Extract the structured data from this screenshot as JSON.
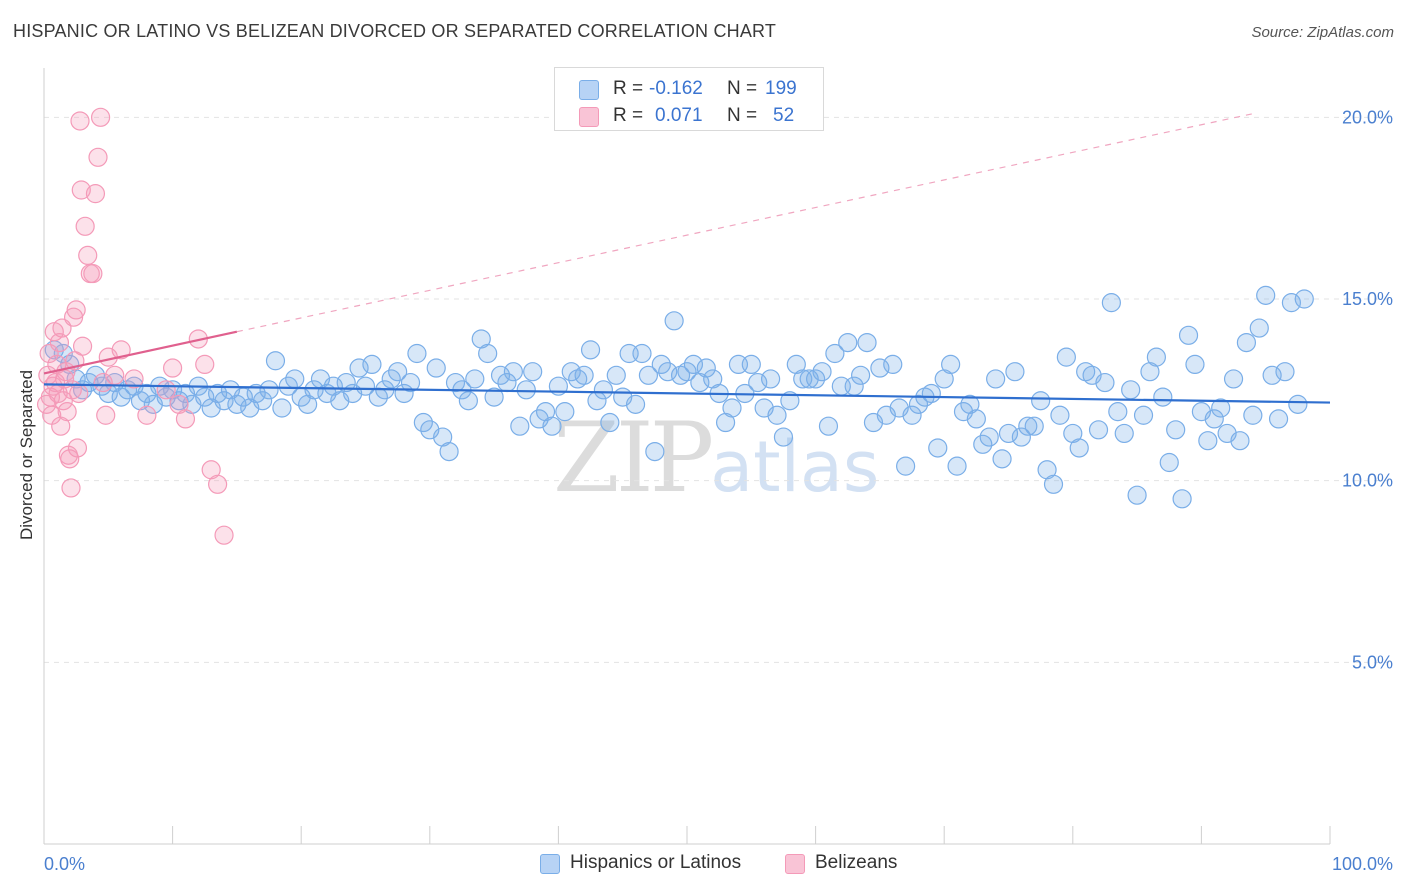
{
  "chart_data": {
    "type": "scatter",
    "title": "HISPANIC OR LATINO VS BELIZEAN DIVORCED OR SEPARATED CORRELATION CHART",
    "source": "Source: ZipAtlas.com",
    "ylabel": "Divorced or Separated",
    "xlim": [
      0,
      100
    ],
    "ylim": [
      0,
      21
    ],
    "x_tick_labels": [
      "0.0%",
      "100.0%"
    ],
    "y_ticks": [
      {
        "value": 5,
        "label": "5.0%"
      },
      {
        "value": 10,
        "label": "10.0%"
      },
      {
        "value": 15,
        "label": "15.0%"
      },
      {
        "value": 20,
        "label": "20.0%"
      }
    ],
    "legend": {
      "rows": [
        {
          "r_label": "R =",
          "r_value": "-0.162",
          "n_label": "N =",
          "n_value": "199"
        },
        {
          "r_label": "R =",
          "r_value": "0.071",
          "n_label": "N =",
          "n_value": "52"
        }
      ]
    },
    "watermark": {
      "zip": "ZIP",
      "atlas": "atlas"
    },
    "series": [
      {
        "name": "Hispanics or Latinos",
        "color": "#7aaee8",
        "line_color": "#2f6fcf",
        "trend": {
          "x": [
            0,
            100
          ],
          "y": [
            12.65,
            12.15
          ]
        },
        "points": [
          [
            0.8,
            13.6
          ],
          [
            1.5,
            13.5
          ],
          [
            2.0,
            13.2
          ],
          [
            2.5,
            12.8
          ],
          [
            3.0,
            12.5
          ],
          [
            3.5,
            12.7
          ],
          [
            4.0,
            12.9
          ],
          [
            4.5,
            12.6
          ],
          [
            5.0,
            12.4
          ],
          [
            5.5,
            12.7
          ],
          [
            6.0,
            12.3
          ],
          [
            6.5,
            12.5
          ],
          [
            7.0,
            12.6
          ],
          [
            7.5,
            12.2
          ],
          [
            8.0,
            12.4
          ],
          [
            8.5,
            12.1
          ],
          [
            9.0,
            12.6
          ],
          [
            9.5,
            12.3
          ],
          [
            10.0,
            12.5
          ],
          [
            10.5,
            12.2
          ],
          [
            11.0,
            12.4
          ],
          [
            11.5,
            12.1
          ],
          [
            12.0,
            12.6
          ],
          [
            12.5,
            12.3
          ],
          [
            13.0,
            12.0
          ],
          [
            13.5,
            12.4
          ],
          [
            14.0,
            12.2
          ],
          [
            14.5,
            12.5
          ],
          [
            15.0,
            12.1
          ],
          [
            15.5,
            12.3
          ],
          [
            16.0,
            12.0
          ],
          [
            16.5,
            12.4
          ],
          [
            17.0,
            12.2
          ],
          [
            17.5,
            12.5
          ],
          [
            18.0,
            13.3
          ],
          [
            18.5,
            12.0
          ],
          [
            19.0,
            12.6
          ],
          [
            19.5,
            12.8
          ],
          [
            20.0,
            12.3
          ],
          [
            20.5,
            12.1
          ],
          [
            21.0,
            12.5
          ],
          [
            21.5,
            12.8
          ],
          [
            22.0,
            12.4
          ],
          [
            22.5,
            12.6
          ],
          [
            23.0,
            12.2
          ],
          [
            23.5,
            12.7
          ],
          [
            24.0,
            12.4
          ],
          [
            24.5,
            13.1
          ],
          [
            25.0,
            12.6
          ],
          [
            25.5,
            13.2
          ],
          [
            26.0,
            12.3
          ],
          [
            26.5,
            12.5
          ],
          [
            27.0,
            12.8
          ],
          [
            27.5,
            13.0
          ],
          [
            28.0,
            12.4
          ],
          [
            28.5,
            12.7
          ],
          [
            29.0,
            13.5
          ],
          [
            29.5,
            11.6
          ],
          [
            30.0,
            11.4
          ],
          [
            30.5,
            13.1
          ],
          [
            31.0,
            11.2
          ],
          [
            31.5,
            10.8
          ],
          [
            32.0,
            12.7
          ],
          [
            32.5,
            12.5
          ],
          [
            33.0,
            12.2
          ],
          [
            33.5,
            12.8
          ],
          [
            34.0,
            13.9
          ],
          [
            34.5,
            13.5
          ],
          [
            35.0,
            12.3
          ],
          [
            35.5,
            12.9
          ],
          [
            36.0,
            12.7
          ],
          [
            36.5,
            13.0
          ],
          [
            37.0,
            11.5
          ],
          [
            37.5,
            12.5
          ],
          [
            38.0,
            13.0
          ],
          [
            38.5,
            11.7
          ],
          [
            39.0,
            11.9
          ],
          [
            39.5,
            11.5
          ],
          [
            40.0,
            12.6
          ],
          [
            40.5,
            11.9
          ],
          [
            41.0,
            13.0
          ],
          [
            41.5,
            12.8
          ],
          [
            42.0,
            12.9
          ],
          [
            42.5,
            13.6
          ],
          [
            43.0,
            12.2
          ],
          [
            43.5,
            12.5
          ],
          [
            44.0,
            11.6
          ],
          [
            44.5,
            12.9
          ],
          [
            45.0,
            12.3
          ],
          [
            45.5,
            13.5
          ],
          [
            46.0,
            12.1
          ],
          [
            46.5,
            13.5
          ],
          [
            47.0,
            12.9
          ],
          [
            47.5,
            10.8
          ],
          [
            48.0,
            13.2
          ],
          [
            48.5,
            13.0
          ],
          [
            49.0,
            14.4
          ],
          [
            49.5,
            12.9
          ],
          [
            50.0,
            13.0
          ],
          [
            50.5,
            13.2
          ],
          [
            51.0,
            12.7
          ],
          [
            51.5,
            13.1
          ],
          [
            52.0,
            12.8
          ],
          [
            52.5,
            12.4
          ],
          [
            53.0,
            11.6
          ],
          [
            53.5,
            12.0
          ],
          [
            54.0,
            13.2
          ],
          [
            54.5,
            12.4
          ],
          [
            55.0,
            13.2
          ],
          [
            55.5,
            12.7
          ],
          [
            56.0,
            12.0
          ],
          [
            56.5,
            12.8
          ],
          [
            57.0,
            11.8
          ],
          [
            57.5,
            11.2
          ],
          [
            58.0,
            12.2
          ],
          [
            58.5,
            13.2
          ],
          [
            59.0,
            12.8
          ],
          [
            59.5,
            12.8
          ],
          [
            60.0,
            12.8
          ],
          [
            60.5,
            13.0
          ],
          [
            61.0,
            11.5
          ],
          [
            61.5,
            13.5
          ],
          [
            62.0,
            12.6
          ],
          [
            62.5,
            13.8
          ],
          [
            63.0,
            12.6
          ],
          [
            63.5,
            12.9
          ],
          [
            64.0,
            13.8
          ],
          [
            64.5,
            11.6
          ],
          [
            65.0,
            13.1
          ],
          [
            65.5,
            11.8
          ],
          [
            66.0,
            13.2
          ],
          [
            66.5,
            12.0
          ],
          [
            67.0,
            10.4
          ],
          [
            67.5,
            11.8
          ],
          [
            68.0,
            12.1
          ],
          [
            68.5,
            12.3
          ],
          [
            69.0,
            12.4
          ],
          [
            69.5,
            10.9
          ],
          [
            70.0,
            12.8
          ],
          [
            70.5,
            13.2
          ],
          [
            71.0,
            10.4
          ],
          [
            71.5,
            11.9
          ],
          [
            72.0,
            12.1
          ],
          [
            72.5,
            11.7
          ],
          [
            73.0,
            11.0
          ],
          [
            73.5,
            11.2
          ],
          [
            74.0,
            12.8
          ],
          [
            74.5,
            10.6
          ],
          [
            75.0,
            11.3
          ],
          [
            75.5,
            13.0
          ],
          [
            76.0,
            11.2
          ],
          [
            76.5,
            11.5
          ],
          [
            77.0,
            11.5
          ],
          [
            77.5,
            12.2
          ],
          [
            78.0,
            10.3
          ],
          [
            78.5,
            9.9
          ],
          [
            79.0,
            11.8
          ],
          [
            79.5,
            13.4
          ],
          [
            80.0,
            11.3
          ],
          [
            80.5,
            10.9
          ],
          [
            81.0,
            13.0
          ],
          [
            81.5,
            12.9
          ],
          [
            82.0,
            11.4
          ],
          [
            82.5,
            12.7
          ],
          [
            83.0,
            14.9
          ],
          [
            83.5,
            11.9
          ],
          [
            84.0,
            11.3
          ],
          [
            84.5,
            12.5
          ],
          [
            85.0,
            9.6
          ],
          [
            85.5,
            11.8
          ],
          [
            86.0,
            13.0
          ],
          [
            86.5,
            13.4
          ],
          [
            87.0,
            12.3
          ],
          [
            87.5,
            10.5
          ],
          [
            88.0,
            11.4
          ],
          [
            88.5,
            9.5
          ],
          [
            89.0,
            14.0
          ],
          [
            89.5,
            13.2
          ],
          [
            90.0,
            11.9
          ],
          [
            90.5,
            11.1
          ],
          [
            91.0,
            11.7
          ],
          [
            91.5,
            12.0
          ],
          [
            92.0,
            11.3
          ],
          [
            92.5,
            12.8
          ],
          [
            93.0,
            11.1
          ],
          [
            93.5,
            13.8
          ],
          [
            94.0,
            11.8
          ],
          [
            94.5,
            14.2
          ],
          [
            95.0,
            15.1
          ],
          [
            95.5,
            12.9
          ],
          [
            96.0,
            11.7
          ],
          [
            96.5,
            13.0
          ],
          [
            97.0,
            14.9
          ],
          [
            97.5,
            12.1
          ],
          [
            98.0,
            15.0
          ]
        ]
      },
      {
        "name": "Belizeans",
        "color": "#f49ab8",
        "line_color": "#e0608e",
        "trend": {
          "x": [
            0,
            15
          ],
          "y": [
            12.95,
            14.1
          ]
        },
        "trend_ext": {
          "x": [
            15,
            94
          ],
          "y": [
            14.1,
            20.1
          ]
        },
        "points": [
          [
            0.2,
            12.1
          ],
          [
            0.3,
            12.9
          ],
          [
            0.4,
            13.5
          ],
          [
            0.5,
            12.3
          ],
          [
            0.6,
            11.8
          ],
          [
            0.7,
            12.6
          ],
          [
            0.8,
            14.1
          ],
          [
            0.9,
            12.7
          ],
          [
            1.0,
            13.2
          ],
          [
            1.1,
            12.4
          ],
          [
            1.2,
            13.8
          ],
          [
            1.3,
            11.5
          ],
          [
            1.4,
            14.2
          ],
          [
            1.5,
            12.2
          ],
          [
            1.6,
            12.8
          ],
          [
            1.7,
            13.0
          ],
          [
            1.8,
            11.9
          ],
          [
            1.9,
            10.7
          ],
          [
            2.0,
            10.6
          ],
          [
            2.1,
            9.8
          ],
          [
            2.2,
            12.5
          ],
          [
            2.3,
            14.5
          ],
          [
            2.4,
            13.3
          ],
          [
            2.5,
            14.7
          ],
          [
            2.6,
            10.9
          ],
          [
            2.7,
            12.4
          ],
          [
            2.8,
            19.9
          ],
          [
            2.9,
            18.0
          ],
          [
            3.0,
            13.7
          ],
          [
            3.2,
            17.0
          ],
          [
            3.4,
            16.2
          ],
          [
            3.6,
            15.7
          ],
          [
            3.8,
            15.7
          ],
          [
            4.0,
            17.9
          ],
          [
            4.2,
            18.9
          ],
          [
            4.4,
            20.0
          ],
          [
            4.6,
            12.7
          ],
          [
            4.8,
            11.8
          ],
          [
            5.0,
            13.4
          ],
          [
            5.5,
            12.9
          ],
          [
            6.0,
            13.6
          ],
          [
            7.0,
            12.8
          ],
          [
            8.0,
            11.8
          ],
          [
            9.5,
            12.5
          ],
          [
            10.0,
            13.1
          ],
          [
            10.5,
            12.1
          ],
          [
            11.0,
            11.7
          ],
          [
            12.0,
            13.9
          ],
          [
            12.5,
            13.2
          ],
          [
            13.0,
            10.3
          ],
          [
            13.5,
            9.9
          ],
          [
            14.0,
            8.5
          ]
        ]
      }
    ]
  }
}
